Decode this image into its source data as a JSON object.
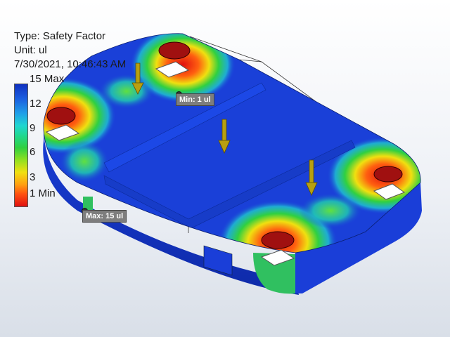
{
  "result_info": {
    "type_text": "Type: Safety Factor",
    "unit_text": "Unit: ul",
    "timestamp": "7/30/2021, 10:46:43 AM"
  },
  "legend": {
    "max_label": "15 Max",
    "tick_12": "12",
    "tick_9": "9",
    "tick_6": "6",
    "tick_3": "3",
    "min_label": "1 Min",
    "colors": [
      "#1030c0",
      "#1fa0e8",
      "#20d6d0",
      "#30d040",
      "#f0e010",
      "#ffa010",
      "#e01010"
    ]
  },
  "probes": {
    "min_label": "Min: 1 ul",
    "max_label": "Max: 15 ul"
  }
}
